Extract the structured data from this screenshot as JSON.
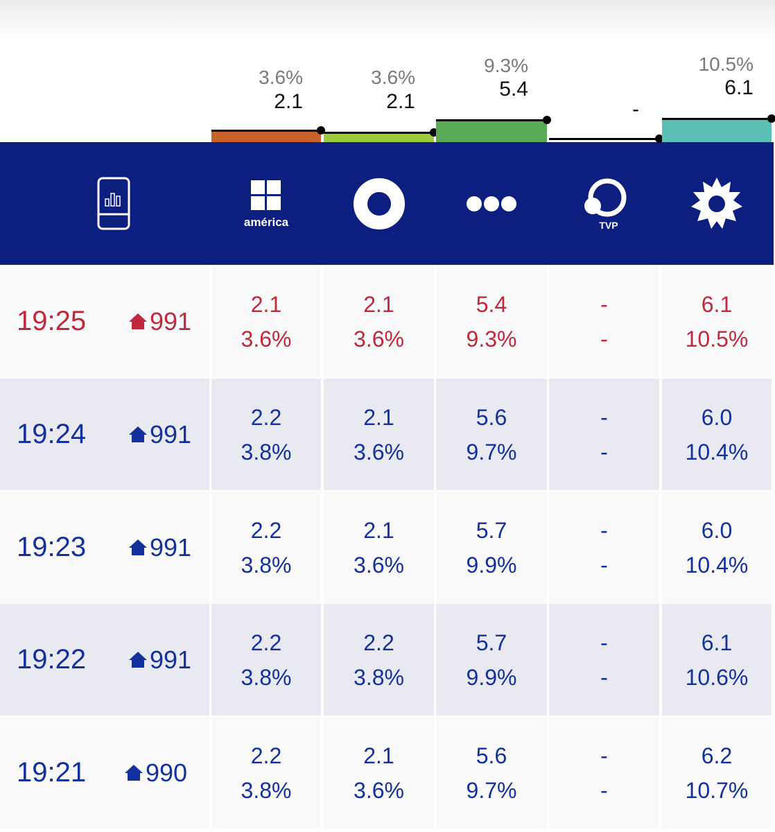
{
  "summary": [
    {
      "share": "3.6%",
      "rating": "2.1"
    },
    {
      "share": "3.6%",
      "rating": "2.1"
    },
    {
      "share": "9.3%",
      "rating": "5.4"
    },
    {
      "rating": "-"
    },
    {
      "share": "10.5%",
      "rating": "6.1"
    }
  ],
  "header": {
    "america_label": "américa",
    "tvp_label": "TVP"
  },
  "rows": [
    {
      "time": "19:25",
      "homes": "991",
      "cells": [
        [
          "2.1",
          "3.6%"
        ],
        [
          "2.1",
          "3.6%"
        ],
        [
          "5.4",
          "9.3%"
        ],
        [
          "-",
          "-"
        ],
        [
          "6.1",
          "10.5%"
        ]
      ]
    },
    {
      "time": "19:24",
      "homes": "991",
      "cells": [
        [
          "2.2",
          "3.8%"
        ],
        [
          "2.1",
          "3.6%"
        ],
        [
          "5.6",
          "9.7%"
        ],
        [
          "-",
          "-"
        ],
        [
          "6.0",
          "10.4%"
        ]
      ]
    },
    {
      "time": "19:23",
      "homes": "991",
      "cells": [
        [
          "2.2",
          "3.8%"
        ],
        [
          "2.1",
          "3.6%"
        ],
        [
          "5.7",
          "9.9%"
        ],
        [
          "-",
          "-"
        ],
        [
          "6.0",
          "10.4%"
        ]
      ]
    },
    {
      "time": "19:22",
      "homes": "991",
      "cells": [
        [
          "2.2",
          "3.8%"
        ],
        [
          "2.2",
          "3.8%"
        ],
        [
          "5.7",
          "9.9%"
        ],
        [
          "-",
          "-"
        ],
        [
          "6.1",
          "10.6%"
        ]
      ]
    },
    {
      "time": "19:21",
      "homes": "990",
      "cells": [
        [
          "2.2",
          "3.8%"
        ],
        [
          "2.1",
          "3.6%"
        ],
        [
          "5.6",
          "9.7%"
        ],
        [
          "-",
          "-"
        ],
        [
          "6.2",
          "10.7%"
        ]
      ]
    }
  ]
}
